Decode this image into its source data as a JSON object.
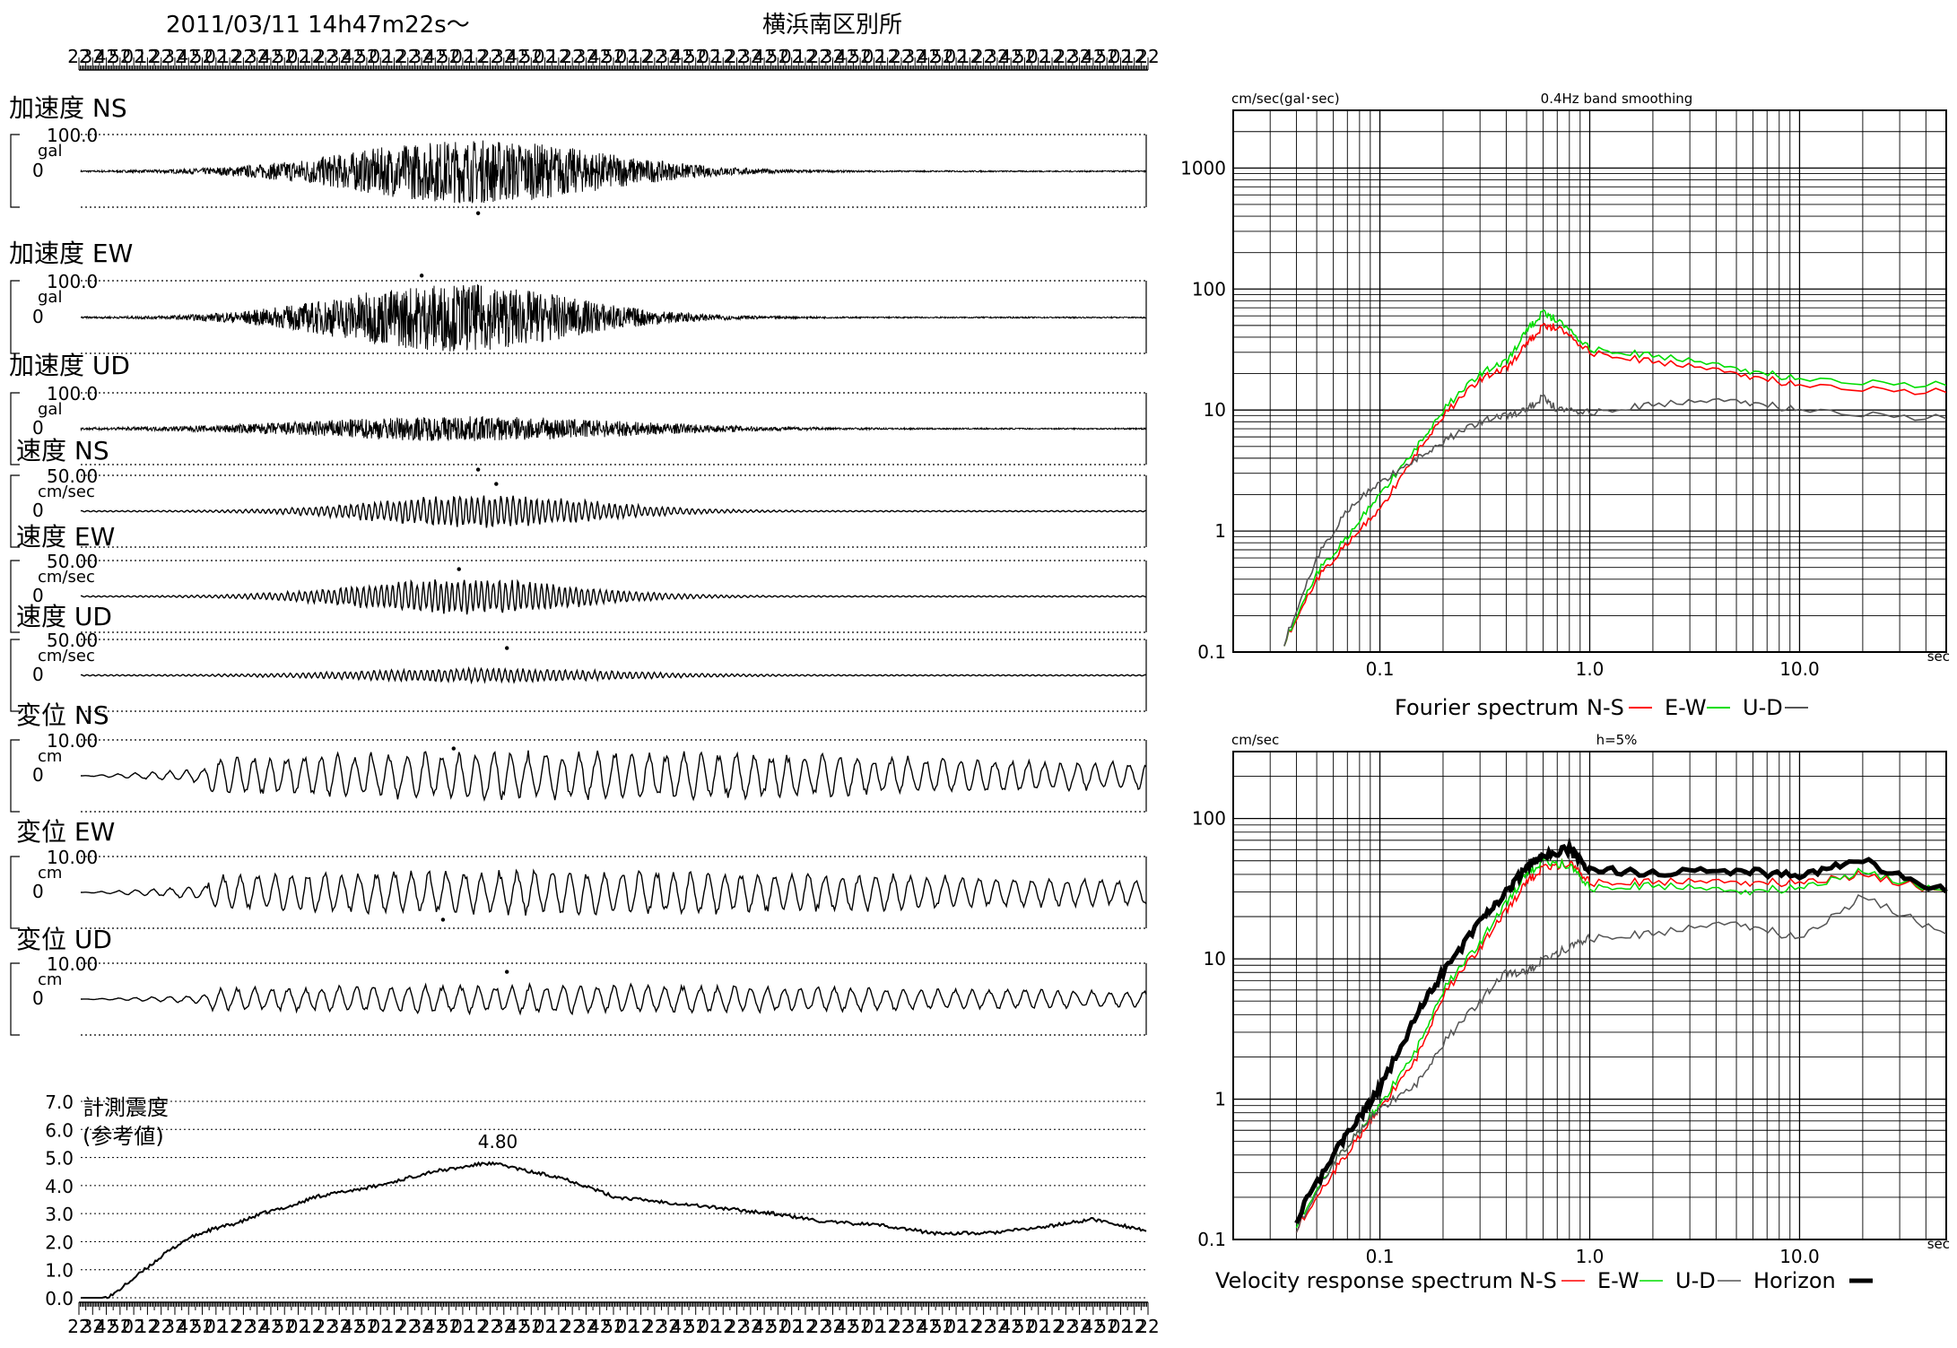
{
  "header": {
    "datetime": "2011/03/11  14h47m22s〜",
    "station": "横浜南区別所",
    "time_ticks": [
      "22",
      "32",
      "42",
      "52",
      "02",
      "12",
      "22",
      "32",
      "42",
      "52",
      "02",
      "12",
      "22",
      "32",
      "42",
      "52",
      "02",
      "12",
      "22",
      "32",
      "42",
      "52",
      "02",
      "12",
      "22",
      "32",
      "42",
      "52",
      "02",
      "12",
      "22",
      "32",
      "42",
      "52",
      "02",
      "12",
      "22",
      "32",
      "42",
      "52",
      "02",
      "12",
      "22",
      "32",
      "42",
      "52",
      "02",
      "12",
      "22",
      "32",
      "42",
      "52",
      "02",
      "12",
      "22",
      "32",
      "42",
      "52",
      "02",
      "12",
      "22",
      "32",
      "42",
      "52",
      "02",
      "12",
      "22",
      "32",
      "42",
      "52",
      "02",
      "12",
      "22",
      "32",
      "42",
      "52",
      "02",
      "12",
      "22"
    ]
  },
  "chart_data": [
    {
      "type": "line",
      "id": "waveforms",
      "x_unit": "sec",
      "duration": 360,
      "panels": [
        {
          "title": "加速度 NS",
          "scale": "100.0",
          "unit": "gal",
          "zero": "0",
          "kind": "acc",
          "envelope": 0.9,
          "center": 0.37,
          "width": 0.16,
          "peak_t": 0.373,
          "peak_dir": -1
        },
        {
          "title": "加速度 EW",
          "scale": "100.0",
          "unit": "gal",
          "zero": "0",
          "kind": "acc",
          "envelope": 0.95,
          "center": 0.35,
          "width": 0.15,
          "peak_t": 0.32,
          "peak_dir": 1
        },
        {
          "title": "加速度 UD",
          "scale": "100.0",
          "unit": "gal",
          "zero": "0",
          "kind": "acc",
          "envelope": 0.35,
          "center": 0.36,
          "width": 0.2,
          "peak_t": 0.373,
          "peak_dir": -1
        },
        {
          "title": "速度 NS",
          "scale": "50.00",
          "unit": "cm/sec",
          "zero": "0",
          "kind": "vel",
          "envelope": 0.5,
          "center": 0.38,
          "width": 0.14,
          "peak_t": 0.39,
          "peak_dir": 1
        },
        {
          "title": "速度 EW",
          "scale": "50.00",
          "unit": "cm/sec",
          "zero": "0",
          "kind": "vel",
          "envelope": 0.55,
          "center": 0.36,
          "width": 0.14,
          "peak_t": 0.355,
          "peak_dir": 1
        },
        {
          "title": "速度 UD",
          "scale": "50.00",
          "unit": "cm/sec",
          "zero": "0",
          "kind": "vel",
          "envelope": 0.2,
          "center": 0.38,
          "width": 0.16,
          "peak_t": 0.4,
          "peak_dir": 1
        },
        {
          "title": "変位 NS",
          "scale": "10.00",
          "unit": "cm",
          "zero": "0",
          "kind": "disp",
          "envelope": 0.75,
          "center": 0.45,
          "width": 0.4,
          "peak_t": 0.35,
          "peak_dir": 1
        },
        {
          "title": "変位 EW",
          "scale": "10.00",
          "unit": "cm",
          "zero": "0",
          "kind": "disp",
          "envelope": 0.7,
          "center": 0.45,
          "width": 0.4,
          "peak_t": 0.34,
          "peak_dir": -1
        },
        {
          "title": "変位 UD",
          "scale": "10.00",
          "unit": "cm",
          "zero": "0",
          "kind": "disp",
          "envelope": 0.45,
          "center": 0.45,
          "width": 0.4,
          "peak_t": 0.4,
          "peak_dir": 1
        }
      ]
    },
    {
      "type": "line",
      "id": "seismic_intensity",
      "title": "計測震度",
      "subtitle": "(参考値)",
      "peak_label": "4.80",
      "yticks": [
        "0.0",
        "1.0",
        "2.0",
        "3.0",
        "4.0",
        "5.0",
        "6.0",
        "7.0"
      ],
      "ylim": [
        0,
        7
      ],
      "x_frac": [
        0,
        0.02,
        0.03,
        0.06,
        0.08,
        0.1,
        0.12,
        0.15,
        0.17,
        0.2,
        0.22,
        0.25,
        0.28,
        0.3,
        0.33,
        0.35,
        0.38,
        0.4,
        0.42,
        0.45,
        0.48,
        0.5,
        0.55,
        0.6,
        0.65,
        0.7,
        0.75,
        0.8,
        0.85,
        0.9,
        0.95,
        1.0
      ],
      "values": [
        0.0,
        0.0,
        0.1,
        1.0,
        1.6,
        2.1,
        2.4,
        2.7,
        3.0,
        3.3,
        3.6,
        3.8,
        4.0,
        4.2,
        4.5,
        4.6,
        4.8,
        4.7,
        4.5,
        4.3,
        3.9,
        3.6,
        3.4,
        3.2,
        3.0,
        2.7,
        2.6,
        2.3,
        2.3,
        2.5,
        2.8,
        2.4
      ]
    },
    {
      "type": "line",
      "id": "fourier_spectrum",
      "title": "0.4Hz band smoothing",
      "ylabel": "cm/sec(gal･sec)",
      "xlabel": "sec",
      "log_x": true,
      "log_y": true,
      "xlim": [
        0.02,
        50
      ],
      "ylim": [
        0.1,
        3000
      ],
      "xtick_labels": [
        {
          "v": 0.1,
          "t": "0.1"
        },
        {
          "v": 1,
          "t": "1.0"
        },
        {
          "v": 10,
          "t": "10.0"
        }
      ],
      "ytick_labels": [
        {
          "v": 0.1,
          "t": "0.1"
        },
        {
          "v": 1,
          "t": "1"
        },
        {
          "v": 10,
          "t": "10"
        },
        {
          "v": 100,
          "t": "100"
        },
        {
          "v": 1000,
          "t": "1000"
        }
      ],
      "legend_text": "Fourier spectrum",
      "series": [
        {
          "name": "N-S",
          "color": "#ff0000",
          "x": [
            0.035,
            0.05,
            0.07,
            0.1,
            0.15,
            0.2,
            0.3,
            0.4,
            0.5,
            0.6,
            0.7,
            1.0,
            2.0,
            5.0,
            10.0,
            50.0
          ],
          "y": [
            0.12,
            0.4,
            0.8,
            1.5,
            4.5,
            9.0,
            18.0,
            22.0,
            35.0,
            50.0,
            48.0,
            30.0,
            25.0,
            20.0,
            16.0,
            14.0
          ]
        },
        {
          "name": "E-W",
          "color": "#00dd00",
          "x": [
            0.035,
            0.05,
            0.07,
            0.1,
            0.15,
            0.2,
            0.3,
            0.4,
            0.5,
            0.6,
            0.7,
            1.0,
            2.0,
            5.0,
            10.0,
            50.0
          ],
          "y": [
            0.12,
            0.45,
            0.9,
            2.0,
            5.0,
            10.0,
            20.0,
            25.0,
            45.0,
            65.0,
            55.0,
            32.0,
            28.0,
            22.0,
            18.0,
            16.0
          ]
        },
        {
          "name": "U-D",
          "color": "#555555",
          "x": [
            0.035,
            0.05,
            0.07,
            0.1,
            0.15,
            0.2,
            0.3,
            0.4,
            0.5,
            0.6,
            0.7,
            1.0,
            2.0,
            5.0,
            10.0,
            50.0
          ],
          "y": [
            0.12,
            0.6,
            1.5,
            2.5,
            4.0,
            5.5,
            8.0,
            9.0,
            10.0,
            13.0,
            10.0,
            9.5,
            11.0,
            12.0,
            10.0,
            8.5
          ]
        }
      ]
    },
    {
      "type": "line",
      "id": "velocity_response_spectrum",
      "title": "h=5%",
      "ylabel": "cm/sec",
      "xlabel": "sec",
      "log_x": true,
      "log_y": true,
      "xlim": [
        0.02,
        50
      ],
      "ylim": [
        0.1,
        300
      ],
      "xtick_labels": [
        {
          "v": 0.1,
          "t": "0.1"
        },
        {
          "v": 1,
          "t": "1.0"
        },
        {
          "v": 10,
          "t": "10.0"
        }
      ],
      "ytick_labels": [
        {
          "v": 0.1,
          "t": "0.1"
        },
        {
          "v": 1,
          "t": "1"
        },
        {
          "v": 10,
          "t": "10"
        },
        {
          "v": 100,
          "t": "100"
        }
      ],
      "legend_text": "Velocity response spectrum",
      "series": [
        {
          "name": "N-S",
          "color": "#ff0000",
          "width": 1.5,
          "x": [
            0.04,
            0.06,
            0.08,
            0.1,
            0.15,
            0.2,
            0.3,
            0.4,
            0.5,
            0.6,
            0.8,
            1.0,
            2.0,
            5.0,
            10.0,
            20.0,
            50.0
          ],
          "y": [
            0.12,
            0.3,
            0.55,
            0.85,
            2.0,
            5.5,
            12.0,
            22.0,
            35.0,
            45.0,
            48.0,
            35.0,
            35.0,
            35.0,
            35.0,
            40.0,
            30.0
          ]
        },
        {
          "name": "E-W",
          "color": "#00dd00",
          "width": 1.5,
          "x": [
            0.04,
            0.06,
            0.08,
            0.1,
            0.15,
            0.2,
            0.3,
            0.4,
            0.5,
            0.6,
            0.8,
            1.0,
            2.0,
            5.0,
            10.0,
            20.0,
            50.0
          ],
          "y": [
            0.13,
            0.35,
            0.6,
            0.9,
            2.3,
            6.0,
            13.0,
            25.0,
            40.0,
            50.0,
            46.0,
            32.0,
            33.0,
            30.0,
            32.0,
            42.0,
            30.0
          ]
        },
        {
          "name": "U-D",
          "color": "#555555",
          "width": 1.5,
          "x": [
            0.04,
            0.06,
            0.08,
            0.1,
            0.15,
            0.2,
            0.3,
            0.4,
            0.5,
            0.6,
            0.8,
            1.0,
            2.0,
            5.0,
            10.0,
            20.0,
            50.0
          ],
          "y": [
            0.12,
            0.35,
            0.6,
            0.85,
            1.3,
            2.5,
            5.0,
            8.0,
            8.0,
            10.0,
            12.0,
            14.0,
            15.0,
            18.0,
            14.0,
            28.0,
            15.0
          ]
        },
        {
          "name": "Horizon",
          "color": "#000000",
          "width": 5,
          "x": [
            0.04,
            0.06,
            0.08,
            0.1,
            0.15,
            0.2,
            0.3,
            0.4,
            0.5,
            0.6,
            0.8,
            1.0,
            2.0,
            5.0,
            10.0,
            20.0,
            50.0
          ],
          "y": [
            0.14,
            0.4,
            0.75,
            1.2,
            4.0,
            8.0,
            18.0,
            30.0,
            45.0,
            55.0,
            60.0,
            42.0,
            42.0,
            42.0,
            40.0,
            50.0,
            30.0
          ]
        }
      ]
    }
  ]
}
